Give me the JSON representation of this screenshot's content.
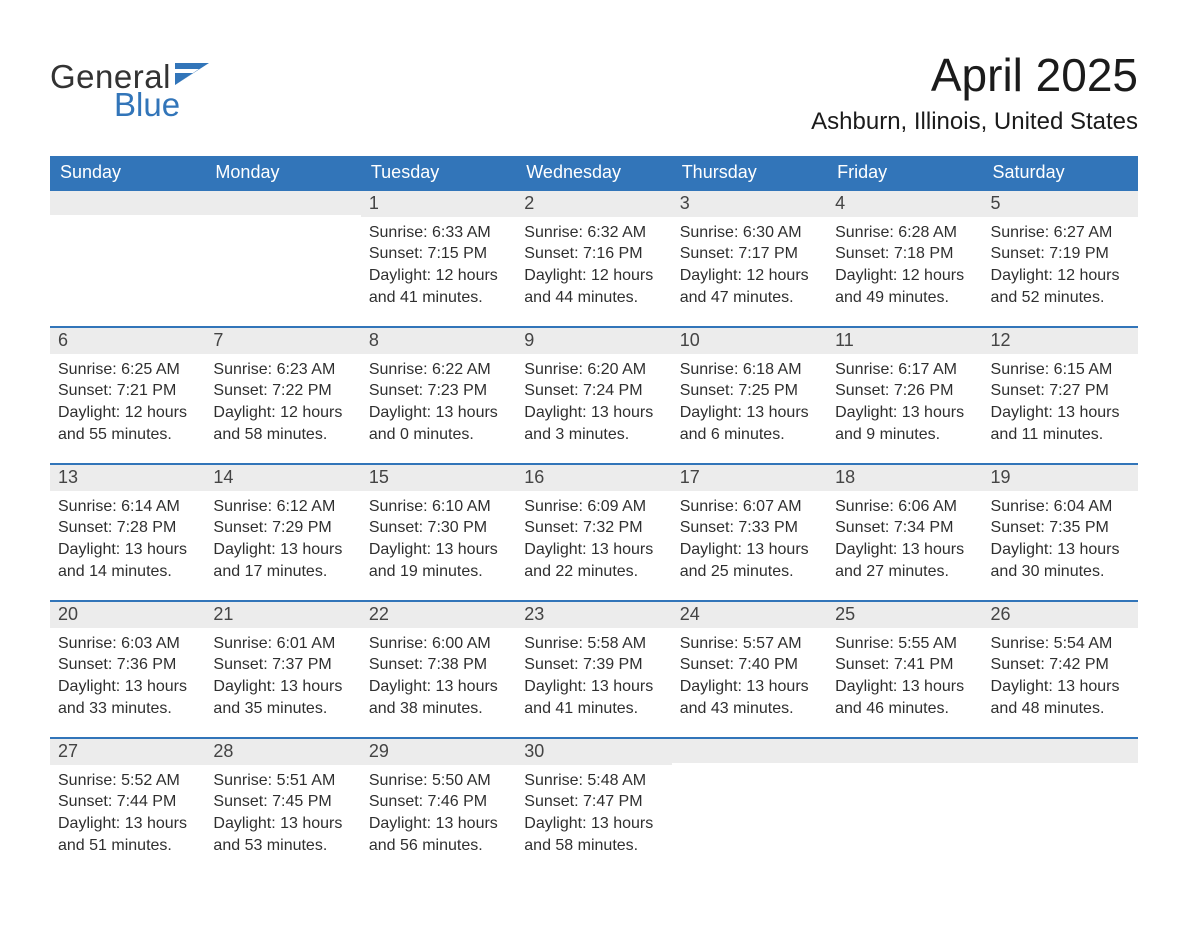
{
  "logo": {
    "word1": "General",
    "word2": "Blue",
    "text_color": "#333333",
    "accent_color": "#3275b9"
  },
  "title": "April 2025",
  "location": "Ashburn, Illinois, United States",
  "colors": {
    "header_bg": "#3275b9",
    "header_text": "#ffffff",
    "daynum_bg": "#ececec",
    "row_border": "#3275b9",
    "body_text": "#2f2f2f",
    "page_bg": "#ffffff"
  },
  "fonts": {
    "title_size_pt": 34,
    "location_size_pt": 18,
    "weekday_size_pt": 14,
    "body_size_pt": 12,
    "family": "Arial"
  },
  "weekdays": [
    "Sunday",
    "Monday",
    "Tuesday",
    "Wednesday",
    "Thursday",
    "Friday",
    "Saturday"
  ],
  "labels": {
    "sunrise": "Sunrise:",
    "sunset": "Sunset:",
    "daylight": "Daylight:"
  },
  "first_weekday_index": 2,
  "days": [
    {
      "n": 1,
      "sunrise": "6:33 AM",
      "sunset": "7:15 PM",
      "daylight": "12 hours and 41 minutes."
    },
    {
      "n": 2,
      "sunrise": "6:32 AM",
      "sunset": "7:16 PM",
      "daylight": "12 hours and 44 minutes."
    },
    {
      "n": 3,
      "sunrise": "6:30 AM",
      "sunset": "7:17 PM",
      "daylight": "12 hours and 47 minutes."
    },
    {
      "n": 4,
      "sunrise": "6:28 AM",
      "sunset": "7:18 PM",
      "daylight": "12 hours and 49 minutes."
    },
    {
      "n": 5,
      "sunrise": "6:27 AM",
      "sunset": "7:19 PM",
      "daylight": "12 hours and 52 minutes."
    },
    {
      "n": 6,
      "sunrise": "6:25 AM",
      "sunset": "7:21 PM",
      "daylight": "12 hours and 55 minutes."
    },
    {
      "n": 7,
      "sunrise": "6:23 AM",
      "sunset": "7:22 PM",
      "daylight": "12 hours and 58 minutes."
    },
    {
      "n": 8,
      "sunrise": "6:22 AM",
      "sunset": "7:23 PM",
      "daylight": "13 hours and 0 minutes."
    },
    {
      "n": 9,
      "sunrise": "6:20 AM",
      "sunset": "7:24 PM",
      "daylight": "13 hours and 3 minutes."
    },
    {
      "n": 10,
      "sunrise": "6:18 AM",
      "sunset": "7:25 PM",
      "daylight": "13 hours and 6 minutes."
    },
    {
      "n": 11,
      "sunrise": "6:17 AM",
      "sunset": "7:26 PM",
      "daylight": "13 hours and 9 minutes."
    },
    {
      "n": 12,
      "sunrise": "6:15 AM",
      "sunset": "7:27 PM",
      "daylight": "13 hours and 11 minutes."
    },
    {
      "n": 13,
      "sunrise": "6:14 AM",
      "sunset": "7:28 PM",
      "daylight": "13 hours and 14 minutes."
    },
    {
      "n": 14,
      "sunrise": "6:12 AM",
      "sunset": "7:29 PM",
      "daylight": "13 hours and 17 minutes."
    },
    {
      "n": 15,
      "sunrise": "6:10 AM",
      "sunset": "7:30 PM",
      "daylight": "13 hours and 19 minutes."
    },
    {
      "n": 16,
      "sunrise": "6:09 AM",
      "sunset": "7:32 PM",
      "daylight": "13 hours and 22 minutes."
    },
    {
      "n": 17,
      "sunrise": "6:07 AM",
      "sunset": "7:33 PM",
      "daylight": "13 hours and 25 minutes."
    },
    {
      "n": 18,
      "sunrise": "6:06 AM",
      "sunset": "7:34 PM",
      "daylight": "13 hours and 27 minutes."
    },
    {
      "n": 19,
      "sunrise": "6:04 AM",
      "sunset": "7:35 PM",
      "daylight": "13 hours and 30 minutes."
    },
    {
      "n": 20,
      "sunrise": "6:03 AM",
      "sunset": "7:36 PM",
      "daylight": "13 hours and 33 minutes."
    },
    {
      "n": 21,
      "sunrise": "6:01 AM",
      "sunset": "7:37 PM",
      "daylight": "13 hours and 35 minutes."
    },
    {
      "n": 22,
      "sunrise": "6:00 AM",
      "sunset": "7:38 PM",
      "daylight": "13 hours and 38 minutes."
    },
    {
      "n": 23,
      "sunrise": "5:58 AM",
      "sunset": "7:39 PM",
      "daylight": "13 hours and 41 minutes."
    },
    {
      "n": 24,
      "sunrise": "5:57 AM",
      "sunset": "7:40 PM",
      "daylight": "13 hours and 43 minutes."
    },
    {
      "n": 25,
      "sunrise": "5:55 AM",
      "sunset": "7:41 PM",
      "daylight": "13 hours and 46 minutes."
    },
    {
      "n": 26,
      "sunrise": "5:54 AM",
      "sunset": "7:42 PM",
      "daylight": "13 hours and 48 minutes."
    },
    {
      "n": 27,
      "sunrise": "5:52 AM",
      "sunset": "7:44 PM",
      "daylight": "13 hours and 51 minutes."
    },
    {
      "n": 28,
      "sunrise": "5:51 AM",
      "sunset": "7:45 PM",
      "daylight": "13 hours and 53 minutes."
    },
    {
      "n": 29,
      "sunrise": "5:50 AM",
      "sunset": "7:46 PM",
      "daylight": "13 hours and 56 minutes."
    },
    {
      "n": 30,
      "sunrise": "5:48 AM",
      "sunset": "7:47 PM",
      "daylight": "13 hours and 58 minutes."
    }
  ]
}
